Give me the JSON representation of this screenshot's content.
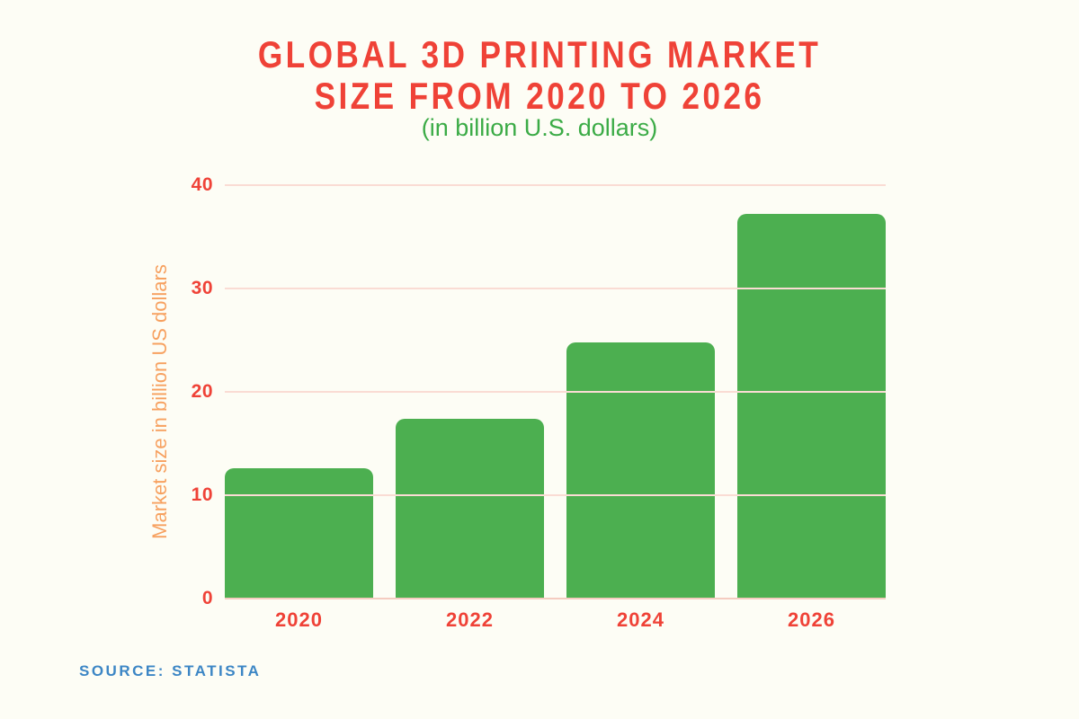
{
  "page": {
    "background": "#FDFDF5"
  },
  "header": {
    "title_line1": "GLOBAL 3D PRINTING MARKET",
    "title_line2": "SIZE FROM 2020 TO 2026",
    "subtitle": "(in billion U.S. dollars)"
  },
  "chart_data": {
    "type": "bar",
    "title": "GLOBAL 3D PRINTING MARKET SIZE FROM 2020 TO 2026",
    "subtitle": "(in billion U.S. dollars)",
    "categories": [
      "2020",
      "2022",
      "2024",
      "2026"
    ],
    "values": [
      12.6,
      17.4,
      24.8,
      37.2
    ],
    "xlabel": "",
    "ylabel": "Market size in billion US dollars",
    "ylim": [
      0,
      40
    ],
    "yticks": [
      0,
      10,
      20,
      30,
      40
    ],
    "grid": true,
    "legend": false,
    "colors": {
      "bar": "#4CAF50",
      "title": "#EF4237",
      "subtitle": "#3BAB46",
      "axis_label": "#F7A160",
      "tick_label": "#EF4237",
      "gridline": "#FADCD4",
      "baseline": "#F5CCC0",
      "background": "#FDFDF5"
    }
  },
  "footer": {
    "source": "SOURCE: STATISTA",
    "source_color": "#3C86C5"
  }
}
